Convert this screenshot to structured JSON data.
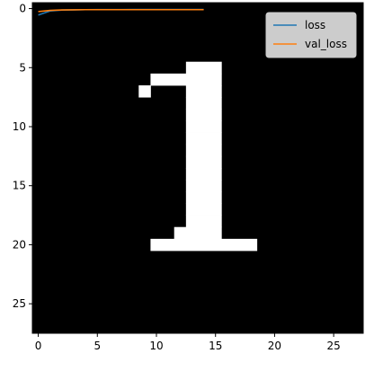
{
  "chart_data": {
    "type": "heatmap",
    "title": "",
    "xlabel": "",
    "ylabel": "",
    "xlim": [
      -0.5,
      27.5
    ],
    "ylim": [
      27.5,
      -0.5
    ],
    "x_ticks": [
      "0",
      "5",
      "10",
      "15",
      "20",
      "25"
    ],
    "y_ticks": [
      "0",
      "5",
      "10",
      "15",
      "20",
      "25"
    ],
    "grid": false,
    "legend_position": "top-right",
    "image": {
      "rows": 28,
      "cols": 28,
      "colormap": "gray",
      "background_value": 0,
      "white_runs": [
        {
          "row": 5,
          "col_start": 13,
          "col_end": 15
        },
        {
          "row": 6,
          "col_start": 10,
          "col_end": 15
        },
        {
          "row": 7,
          "col_start": 9,
          "col_end": 9
        },
        {
          "row": 7,
          "col_start": 13,
          "col_end": 15
        },
        {
          "row": 8,
          "col_start": 13,
          "col_end": 15
        },
        {
          "row": 9,
          "col_start": 13,
          "col_end": 15
        },
        {
          "row": 10,
          "col_start": 13,
          "col_end": 15
        },
        {
          "row": 11,
          "col_start": 13,
          "col_end": 15
        },
        {
          "row": 12,
          "col_start": 13,
          "col_end": 15
        },
        {
          "row": 13,
          "col_start": 13,
          "col_end": 15
        },
        {
          "row": 14,
          "col_start": 13,
          "col_end": 15
        },
        {
          "row": 15,
          "col_start": 13,
          "col_end": 15
        },
        {
          "row": 16,
          "col_start": 13,
          "col_end": 15
        },
        {
          "row": 17,
          "col_start": 13,
          "col_end": 15
        },
        {
          "row": 18,
          "col_start": 13,
          "col_end": 15
        },
        {
          "row": 19,
          "col_start": 12,
          "col_end": 15
        },
        {
          "row": 20,
          "col_start": 10,
          "col_end": 18
        }
      ]
    },
    "series": [
      {
        "name": "loss",
        "color": "#1f77b4",
        "x": [
          0,
          1,
          2,
          3,
          4,
          5,
          6,
          7,
          8,
          9,
          10,
          11,
          12,
          13,
          14
        ],
        "values": [
          0.55,
          0.2,
          0.12,
          0.1,
          0.09,
          0.08,
          0.08,
          0.08,
          0.07,
          0.07,
          0.07,
          0.07,
          0.07,
          0.07,
          0.07
        ]
      },
      {
        "name": "val_loss",
        "color": "#ff7f0e",
        "x": [
          0,
          1,
          2,
          3,
          4,
          5,
          6,
          7,
          8,
          9,
          10,
          11,
          12,
          13,
          14
        ],
        "values": [
          0.25,
          0.15,
          0.11,
          0.1,
          0.09,
          0.09,
          0.09,
          0.09,
          0.09,
          0.09,
          0.09,
          0.09,
          0.09,
          0.09,
          0.09
        ]
      }
    ]
  }
}
